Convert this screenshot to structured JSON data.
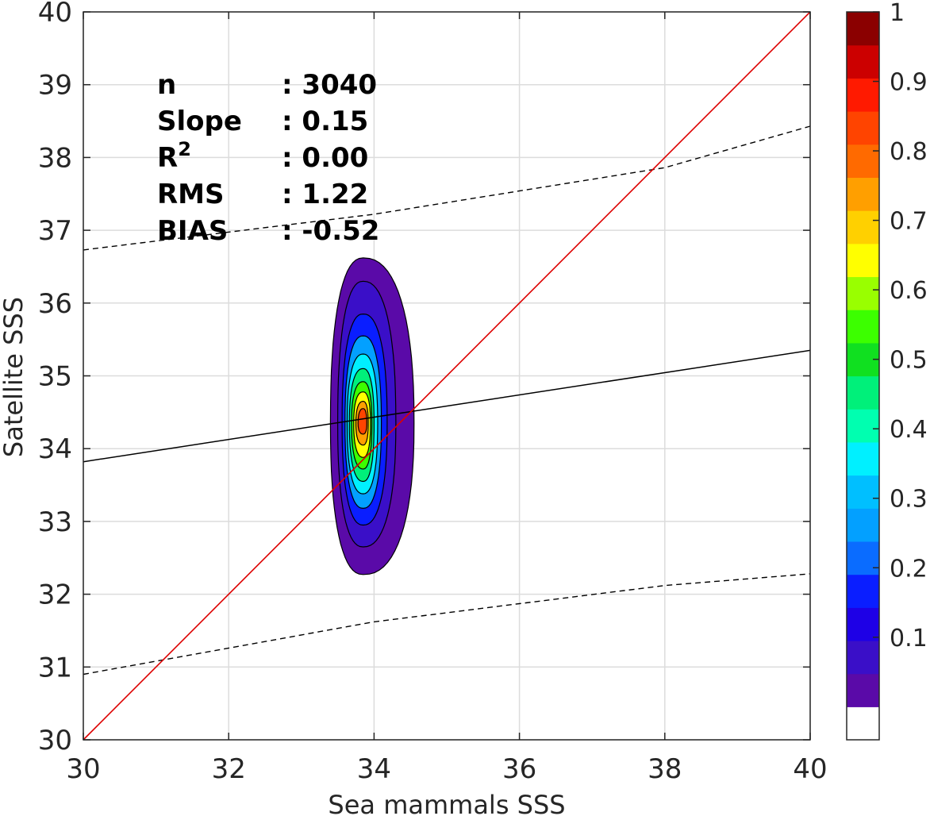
{
  "chart_data": {
    "type": "contour",
    "xlabel": "Sea mammals  SSS",
    "ylabel": "Satellite SSS",
    "xlim": [
      30,
      40
    ],
    "ylim": [
      30,
      40
    ],
    "xticks": [
      "30",
      "32",
      "34",
      "36",
      "38",
      "40"
    ],
    "yticks": [
      "30",
      "31",
      "32",
      "33",
      "34",
      "35",
      "36",
      "37",
      "38",
      "39",
      "40"
    ],
    "grid": true,
    "stats": [
      {
        "label": "n",
        "value": ": 3040"
      },
      {
        "label": "Slope",
        "value": ": 0.15"
      },
      {
        "label": "R",
        "sup": "2",
        "value": ": 0.00"
      },
      {
        "label": "RMS",
        "value": ": 1.22"
      },
      {
        "label": "BIAS",
        "value": ": -0.52"
      }
    ],
    "lines": {
      "one_to_one": {
        "color": "#dd0000",
        "points": [
          [
            30,
            30
          ],
          [
            40,
            40
          ]
        ]
      },
      "regression": {
        "color": "#000000",
        "points": [
          [
            30,
            33.82
          ],
          [
            40,
            35.35
          ]
        ]
      },
      "upper_bound": {
        "color": "#000000",
        "style": "dashed",
        "points": [
          [
            30,
            36.73
          ],
          [
            34,
            37.22
          ],
          [
            38,
            37.86
          ],
          [
            40,
            38.43
          ]
        ]
      },
      "lower_bound": {
        "color": "#000000",
        "style": "dashed",
        "points": [
          [
            30,
            30.9
          ],
          [
            34,
            31.62
          ],
          [
            38,
            32.12
          ],
          [
            40,
            32.28
          ]
        ]
      }
    },
    "density_peak": {
      "x": 33.85,
      "y": 34.35
    },
    "contour_levels": [
      0.05,
      0.1,
      0.2,
      0.3,
      0.4,
      0.5,
      0.6,
      0.7,
      0.8,
      0.9
    ],
    "contour_extents": [
      {
        "level": 0.05,
        "x": [
          33.4,
          34.55
        ],
        "y": [
          32.27,
          36.62
        ]
      },
      {
        "level": 0.1,
        "x": [
          33.5,
          34.3
        ],
        "y": [
          32.65,
          36.3
        ]
      },
      {
        "level": 0.2,
        "x": [
          33.56,
          34.18
        ],
        "y": [
          32.95,
          35.85
        ]
      },
      {
        "level": 0.3,
        "x": [
          33.6,
          34.1
        ],
        "y": [
          33.18,
          35.55
        ]
      },
      {
        "level": 0.4,
        "x": [
          33.63,
          34.05
        ],
        "y": [
          33.38,
          35.3
        ]
      },
      {
        "level": 0.5,
        "x": [
          33.66,
          34.0
        ],
        "y": [
          33.55,
          35.1
        ]
      },
      {
        "level": 0.6,
        "x": [
          33.69,
          33.97
        ],
        "y": [
          33.72,
          34.92
        ]
      },
      {
        "level": 0.7,
        "x": [
          33.72,
          33.95
        ],
        "y": [
          33.88,
          34.78
        ]
      },
      {
        "level": 0.8,
        "x": [
          33.75,
          33.92
        ],
        "y": [
          34.05,
          34.65
        ]
      },
      {
        "level": 0.9,
        "x": [
          33.78,
          33.9
        ],
        "y": [
          34.2,
          34.55
        ]
      }
    ],
    "colorbar": {
      "ticks": [
        "0.1",
        "0.2",
        "0.3",
        "0.4",
        "0.5",
        "0.6",
        "0.7",
        "0.8",
        "0.9",
        "1"
      ],
      "tick_values": [
        0.1,
        0.2,
        0.3,
        0.4,
        0.5,
        0.6,
        0.7,
        0.8,
        0.9,
        1.0
      ],
      "range": [
        0,
        1
      ],
      "bins": 20,
      "colors": [
        "#ffffff",
        "#5a0aa8",
        "#3a0fc8",
        "#1e00e6",
        "#0a1eff",
        "#0a6cff",
        "#03a0ff",
        "#00bfff",
        "#00f0ff",
        "#00ffb0",
        "#00f07a",
        "#10e020",
        "#3cff00",
        "#99ff00",
        "#ffff00",
        "#ffd000",
        "#ff9f00",
        "#ff6a00",
        "#ff4400",
        "#ff1a00",
        "#cc0000",
        "#8b0000"
      ]
    }
  }
}
